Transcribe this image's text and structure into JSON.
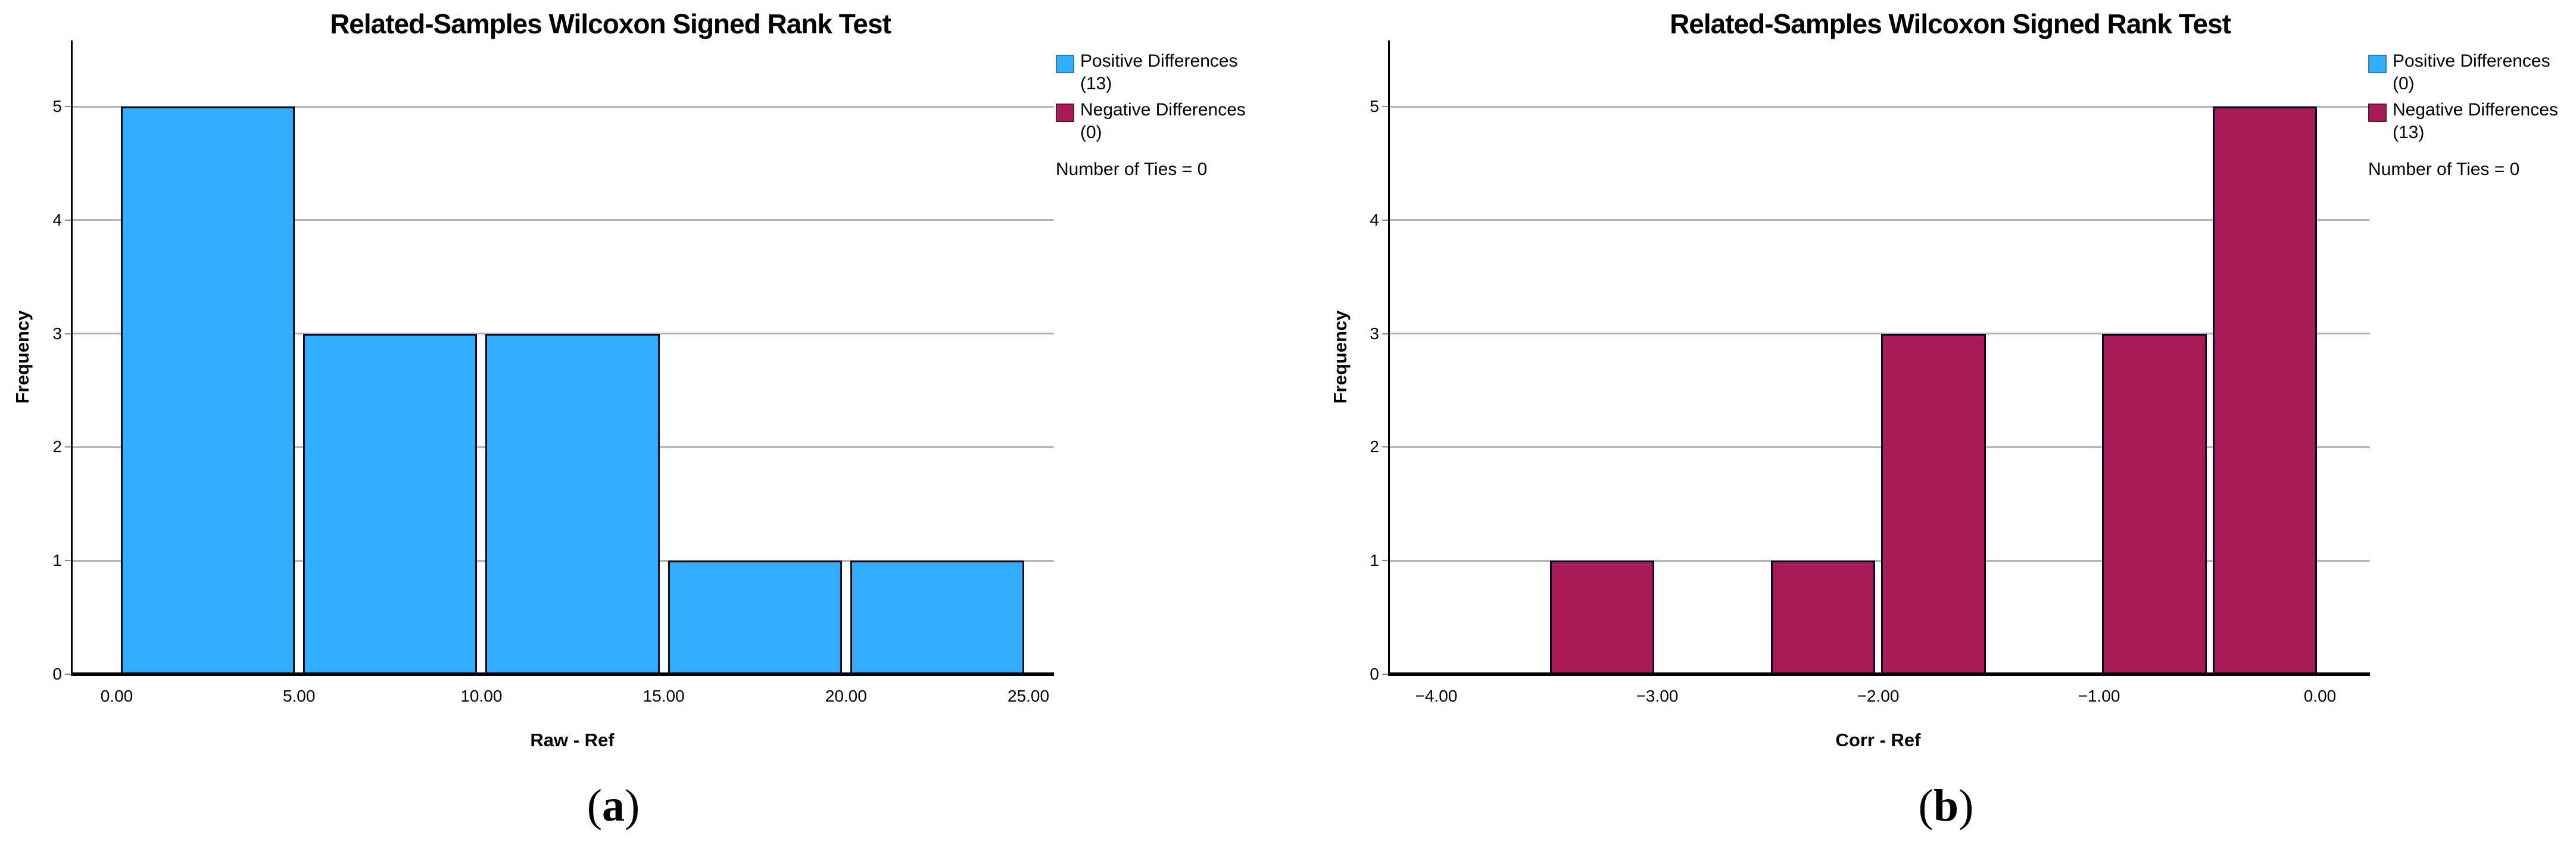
{
  "colors": {
    "positive_blue": "#31ADFF",
    "positive_blue_edge": "#2E7DB5",
    "negative_maroon": "#A81B59",
    "negative_maroon_edge": "#6E1038",
    "bar_outline": "#0a0a23",
    "gridline_gray": "#b4b4b4",
    "axis_black": "#000000",
    "background": "#ffffff"
  },
  "panel_captions": [
    {
      "open": "(",
      "letter": "a",
      "close": ")"
    },
    {
      "open": "(",
      "letter": "b",
      "close": ")"
    }
  ],
  "chart_data": [
    {
      "type": "bar",
      "subtype": "histogram",
      "title": "Related-Samples Wilcoxon Signed Rank Test",
      "xlabel": "Raw - Ref",
      "ylabel": "Frequency",
      "xlim": [
        -1.24,
        25.67
      ],
      "ylim": [
        0,
        5.58
      ],
      "grid": "horizontal",
      "legend_position": "right",
      "bar_color": "#31ADFF",
      "bar_edge_color": "#0a0a23",
      "gridline_color": "#b4b4b4",
      "x_ticks": [
        {
          "value": 0,
          "label": "0.00"
        },
        {
          "value": 5,
          "label": "5.00"
        },
        {
          "value": 10,
          "label": "10.00"
        },
        {
          "value": 15,
          "label": "15.00"
        },
        {
          "value": 20,
          "label": "20.00"
        },
        {
          "value": 25,
          "label": "25.00"
        }
      ],
      "y_ticks": [
        {
          "value": 0,
          "label": "0"
        },
        {
          "value": 1,
          "label": "1"
        },
        {
          "value": 2,
          "label": "2"
        },
        {
          "value": 3,
          "label": "3"
        },
        {
          "value": 4,
          "label": "4"
        },
        {
          "value": 5,
          "label": "5"
        }
      ],
      "bins": [
        {
          "from": 0,
          "to": 5,
          "count": 5
        },
        {
          "from": 5,
          "to": 10,
          "count": 3
        },
        {
          "from": 10,
          "to": 15,
          "count": 3
        },
        {
          "from": 15,
          "to": 20,
          "count": 1
        },
        {
          "from": 20,
          "to": 25,
          "count": 1
        }
      ],
      "legend": {
        "entries": [
          {
            "label": "Positive Differences",
            "count_label": "(13)",
            "color": "#31ADFF",
            "edge": "#2E7DB5"
          },
          {
            "label": "Negative Differences",
            "count_label": "(0)",
            "color": "#A81B59",
            "edge": "#6E1038"
          }
        ],
        "note": "Number of Ties = 0"
      }
    },
    {
      "type": "bar",
      "subtype": "histogram",
      "title": "Related-Samples Wilcoxon Signed Rank Test",
      "xlabel": "Corr - Ref",
      "ylabel": "Frequency",
      "xlim": [
        -4.22,
        0.23
      ],
      "ylim": [
        0,
        5.58
      ],
      "grid": "horizontal",
      "legend_position": "right",
      "bar_color": "#A81B59",
      "bar_edge_color": "#0a0a23",
      "gridline_color": "#b4b4b4",
      "x_ticks": [
        {
          "value": -4,
          "label": "−4.00"
        },
        {
          "value": -3,
          "label": "−3.00"
        },
        {
          "value": -2,
          "label": "−2.00"
        },
        {
          "value": -1,
          "label": "−1.00"
        },
        {
          "value": 0,
          "label": "0.00"
        }
      ],
      "y_ticks": [
        {
          "value": 0,
          "label": "0"
        },
        {
          "value": 1,
          "label": "1"
        },
        {
          "value": 2,
          "label": "2"
        },
        {
          "value": 3,
          "label": "3"
        },
        {
          "value": 4,
          "label": "4"
        },
        {
          "value": 5,
          "label": "5"
        }
      ],
      "bins": [
        {
          "from": -3.5,
          "to": -3.0,
          "count": 1
        },
        {
          "from": -2.5,
          "to": -2.0,
          "count": 1
        },
        {
          "from": -2.0,
          "to": -1.5,
          "count": 3
        },
        {
          "from": -1.0,
          "to": -0.5,
          "count": 3
        },
        {
          "from": -0.5,
          "to": 0.0,
          "count": 5
        }
      ],
      "legend": {
        "entries": [
          {
            "label": "Positive Differences",
            "count_label": "(0)",
            "color": "#31ADFF",
            "edge": "#2E7DB5"
          },
          {
            "label": "Negative Differences",
            "count_label": "(13)",
            "color": "#A81B59",
            "edge": "#6E1038"
          }
        ],
        "note": "Number of Ties = 0"
      }
    }
  ]
}
